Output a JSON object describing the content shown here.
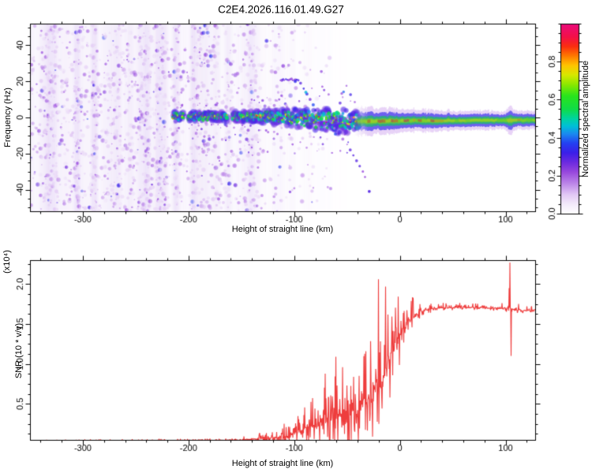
{
  "title": "C2E4.2026.116.01.49.G27",
  "chart_data": [
    {
      "type": "heatmap",
      "title": "C2E4.2026.116.01.49.G27",
      "xlabel": "Height of straight line (km)",
      "ylabel": "Frequency (Hz)",
      "xlim": [
        -350,
        128
      ],
      "ylim": [
        -52,
        52
      ],
      "xtick_labels": [
        "-300",
        "-200",
        "-100",
        "0",
        "100"
      ],
      "ytick_labels": [
        "-40",
        "-20",
        "0",
        "20",
        "40"
      ],
      "x_minor_step": 20,
      "y_minor_step": 5,
      "grid": false,
      "colorbar": {
        "label": "Normalized spectral amplitude",
        "tick_labels": [
          "0.0",
          "0.2",
          "0.4",
          "0.6",
          "0.8"
        ],
        "minor_step": 0.05,
        "range": [
          0,
          1
        ],
        "stops": [
          [
            0.0,
            "#ffffff"
          ],
          [
            0.05,
            "#f3eafb"
          ],
          [
            0.1,
            "#e2c8f5"
          ],
          [
            0.16,
            "#bb84e8"
          ],
          [
            0.22,
            "#9747dd"
          ],
          [
            0.27,
            "#6c2ae0"
          ],
          [
            0.32,
            "#3c1fe8"
          ],
          [
            0.37,
            "#2440f2"
          ],
          [
            0.42,
            "#1b8af0"
          ],
          [
            0.46,
            "#00bfd8"
          ],
          [
            0.5,
            "#00d4a0"
          ],
          [
            0.55,
            "#10dc48"
          ],
          [
            0.62,
            "#2ae41c"
          ],
          [
            0.68,
            "#8ce800"
          ],
          [
            0.73,
            "#d8e800"
          ],
          [
            0.78,
            "#ffc400"
          ],
          [
            0.83,
            "#ff7a00"
          ],
          [
            0.88,
            "#fb2e10"
          ],
          [
            0.93,
            "#f31048"
          ],
          [
            1.0,
            "#ea0c7e"
          ]
        ]
      },
      "features": {
        "noise_region": {
          "density_breakpoints": [
            [
              -350,
              1.0
            ],
            [
              -175,
              1.0
            ],
            [
              -130,
              0.55
            ],
            [
              -100,
              0.2
            ],
            [
              -62,
              0.05
            ],
            [
              -40,
              0.0
            ]
          ],
          "value_range": [
            0.06,
            0.3
          ],
          "stripe_scale_km": 5.5,
          "column_step_km": 0.8,
          "blobs_per_column": 9
        },
        "signal_band": {
          "x_start_km": -215,
          "x_blob_end_km": -38,
          "x_cont_start_km": -44,
          "x_end_km": 128,
          "gaps_km": [
            [
              -206,
              -201
            ],
            [
              -164,
              -159
            ]
          ],
          "center_freq_hz": [
            [
              -215,
              0.5
            ],
            [
              -130,
              0.5
            ],
            [
              -100,
              -0.5
            ],
            [
              -70,
              -1.5
            ],
            [
              -45,
              -2.2
            ],
            [
              -30,
              -2.2
            ],
            [
              0,
              -1.8
            ],
            [
              128,
              -1.5
            ]
          ],
          "half_width_hz": [
            [
              -215,
              3.2
            ],
            [
              -190,
              3.0
            ],
            [
              -150,
              3.4
            ],
            [
              -115,
              5.0
            ],
            [
              -85,
              7.0
            ],
            [
              -60,
              8.0
            ],
            [
              -48,
              8.0
            ],
            [
              -40,
              6.0
            ]
          ],
          "cont_half_width_hz": [
            [
              -44,
              2.6
            ],
            [
              -20,
              2.3
            ],
            [
              20,
              2.0
            ],
            [
              60,
              1.7
            ],
            [
              128,
              1.6
            ]
          ],
          "bump": {
            "x_km": 104,
            "sigma_km": 3,
            "factor": 1.55
          },
          "core_value_range_hot": [
            0.8,
            0.93
          ],
          "core_value_range_warm": [
            0.66,
            0.76
          ]
        },
        "lower_tail": [
          [
            -62,
            -6
          ],
          [
            -58,
            -9
          ],
          [
            -54,
            -12
          ],
          [
            -50,
            -15
          ],
          [
            -47,
            -18
          ],
          [
            -44,
            -21
          ],
          [
            -41,
            -24
          ],
          [
            -38,
            -27
          ],
          [
            -35,
            -30
          ],
          [
            -33,
            -33
          ],
          [
            -29,
            -41
          ]
        ],
        "upper_streak": {
          "y_hz": 21,
          "x_range_km": [
            -113,
            -96
          ],
          "arc": [
            [
              -94,
              19
            ],
            [
              -91,
              16
            ],
            [
              -88,
              13
            ],
            [
              -85,
              10
            ],
            [
              -82,
              7
            ],
            [
              -80,
              4
            ]
          ]
        },
        "below_scatter": {
          "x_range_km": [
            -165,
            -118
          ],
          "freq_range_hz": [
            -22,
            -7
          ],
          "count": 10
        }
      }
    },
    {
      "type": "line",
      "xlabel": "Height of straight line (km)",
      "ylabel": "SNR (10 * v/v)",
      "y_scale_note": "(x10⁴)",
      "xlim": [
        -350,
        128
      ],
      "ylim": [
        0.05,
        2.3
      ],
      "xtick_labels": [
        "-300",
        "-200",
        "-100",
        "0",
        "100"
      ],
      "ytick_labels": [
        "0.5",
        "1.0",
        "1.5",
        "2.0"
      ],
      "x_minor_step": 20,
      "y_minor_step": 0.125,
      "grid": false,
      "color": "#ee3d3d",
      "envelope": [
        [
          -350,
          0.035,
          0.012
        ],
        [
          -260,
          0.04,
          0.015
        ],
        [
          -210,
          0.042,
          0.02
        ],
        [
          -175,
          0.045,
          0.025
        ],
        [
          -150,
          0.05,
          0.035
        ],
        [
          -138,
          0.06,
          0.05
        ],
        [
          -128,
          0.07,
          0.07
        ],
        [
          -118,
          0.08,
          0.1
        ],
        [
          -110,
          0.09,
          0.13
        ],
        [
          -103,
          0.11,
          0.18
        ],
        [
          -97,
          0.14,
          0.24
        ],
        [
          -92,
          0.17,
          0.3
        ],
        [
          -87,
          0.2,
          0.36
        ],
        [
          -82,
          0.24,
          0.42
        ],
        [
          -77,
          0.27,
          0.48
        ],
        [
          -72,
          0.3,
          0.52
        ],
        [
          -66,
          0.33,
          0.55
        ],
        [
          -60,
          0.36,
          0.6
        ],
        [
          -54,
          0.38,
          0.65
        ],
        [
          -48,
          0.42,
          0.7
        ],
        [
          -43,
          0.45,
          0.75
        ],
        [
          -38,
          0.5,
          0.8
        ],
        [
          -33,
          0.55,
          0.85
        ],
        [
          -28,
          0.6,
          0.9
        ],
        [
          -24,
          0.65,
          0.95
        ],
        [
          -20,
          0.7,
          1.0
        ],
        [
          -16,
          0.8,
          0.95
        ],
        [
          -12,
          0.95,
          0.85
        ],
        [
          -8,
          1.1,
          0.7
        ],
        [
          -4,
          1.25,
          0.6
        ],
        [
          0,
          1.35,
          0.5
        ],
        [
          4,
          1.45,
          0.4
        ],
        [
          8,
          1.52,
          0.3
        ],
        [
          12,
          1.58,
          0.22
        ],
        [
          16,
          1.63,
          0.15
        ],
        [
          20,
          1.66,
          0.1
        ],
        [
          26,
          1.68,
          0.07
        ],
        [
          35,
          1.7,
          0.05
        ],
        [
          60,
          1.71,
          0.05
        ],
        [
          85,
          1.7,
          0.05
        ],
        [
          98,
          1.7,
          0.07
        ],
        [
          103,
          1.7,
          0.12
        ],
        [
          108,
          1.68,
          0.08
        ],
        [
          118,
          1.67,
          0.05
        ],
        [
          128,
          1.67,
          0.05
        ]
      ],
      "spikes": [
        [
          -20.3,
          2.06
        ],
        [
          103.2,
          1.95
        ],
        [
          104.2,
          2.27
        ],
        [
          105.3,
          1.1
        ]
      ]
    }
  ]
}
